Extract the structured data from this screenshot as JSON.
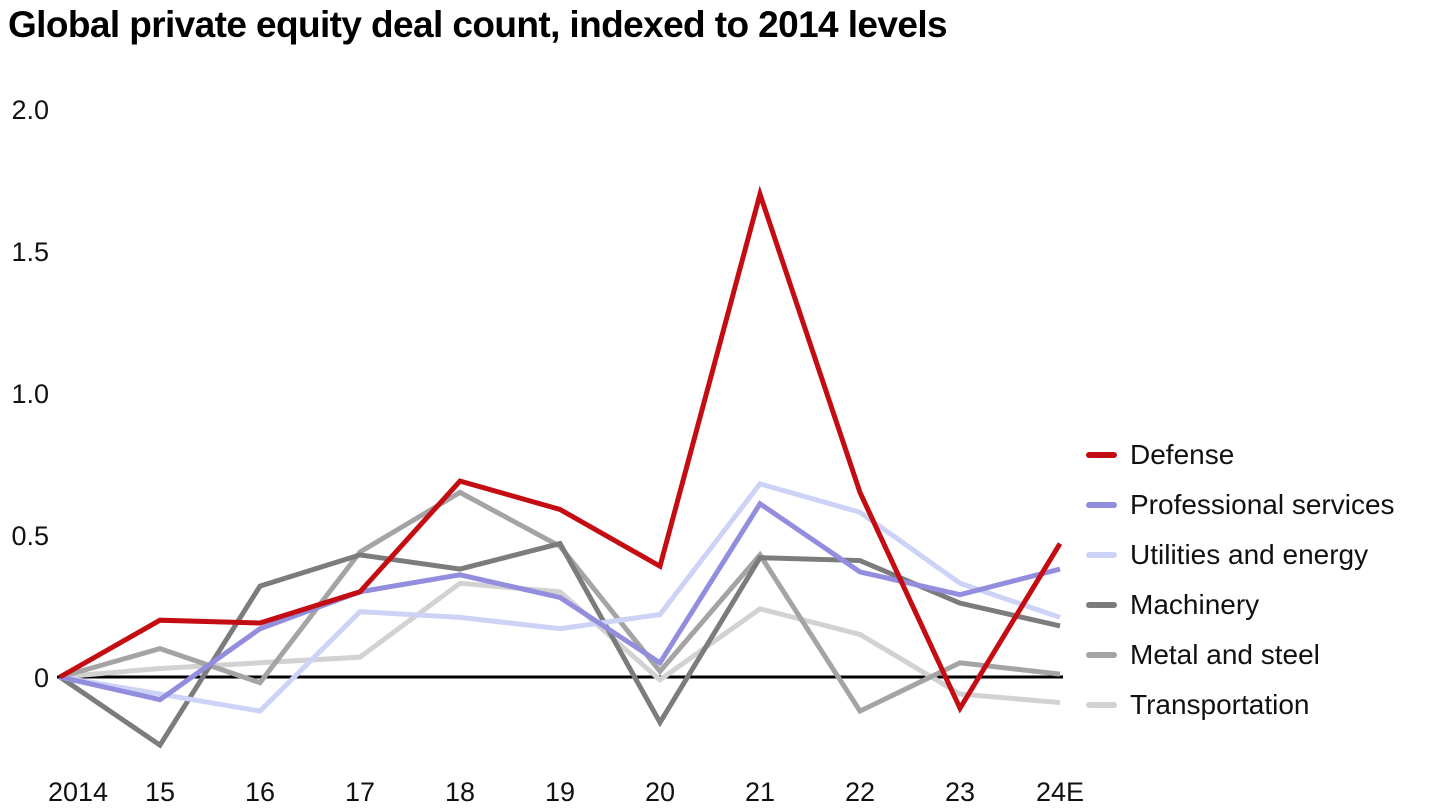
{
  "title": "Global private equity deal count, indexed to 2014 levels",
  "chart_data": {
    "type": "line",
    "title": "Global private equity deal count, indexed to 2014 levels",
    "xlabel": "",
    "ylabel": "",
    "categories": [
      "2014",
      "15",
      "16",
      "17",
      "18",
      "19",
      "20",
      "21",
      "22",
      "23",
      "24E"
    ],
    "y_ticks": [
      {
        "label": "2.0",
        "value": 2.0
      },
      {
        "label": "1.5",
        "value": 1.5
      },
      {
        "label": "1.0",
        "value": 1.0
      },
      {
        "label": "0.5",
        "value": 0.5
      },
      {
        "label": "0",
        "value": 0.0
      }
    ],
    "ylim": [
      -0.35,
      2.05
    ],
    "grid": false,
    "baseline_value": 0,
    "baseline_color": "#000000",
    "legend_position": "right",
    "series": [
      {
        "name": "Defense",
        "color": "#c40d12",
        "values": [
          0,
          0.2,
          0.19,
          0.3,
          0.69,
          0.59,
          0.39,
          1.7,
          0.65,
          -0.11,
          0.47
        ]
      },
      {
        "name": "Professional services",
        "color": "#928edd",
        "values": [
          0,
          -0.08,
          0.17,
          0.3,
          0.36,
          0.28,
          0.05,
          0.61,
          0.37,
          0.29,
          0.38
        ]
      },
      {
        "name": "Utilities and energy",
        "color": "#cdd2f7",
        "values": [
          0,
          -0.06,
          -0.12,
          0.23,
          0.21,
          0.17,
          0.22,
          0.68,
          0.58,
          0.33,
          0.21
        ]
      },
      {
        "name": "Machinery",
        "color": "#7c7c7c",
        "values": [
          0,
          -0.24,
          0.32,
          0.43,
          0.38,
          0.47,
          -0.16,
          0.42,
          0.41,
          0.26,
          0.18
        ]
      },
      {
        "name": "Metal and steel",
        "color": "#a4a4a4",
        "values": [
          0,
          0.1,
          -0.02,
          0.44,
          0.65,
          0.46,
          0.02,
          0.43,
          -0.12,
          0.05,
          0.01
        ]
      },
      {
        "name": "Transportation",
        "color": "#d2d2d2",
        "values": [
          0,
          0.03,
          0.05,
          0.07,
          0.33,
          0.3,
          -0.01,
          0.24,
          0.15,
          -0.06,
          -0.09
        ]
      }
    ]
  }
}
